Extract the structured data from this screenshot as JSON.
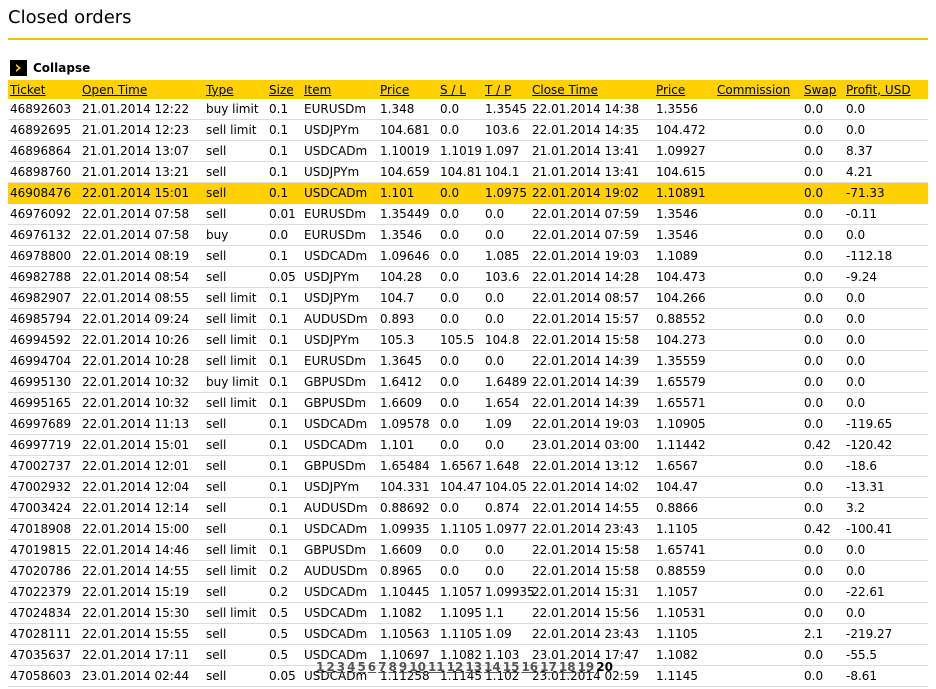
{
  "page": {
    "title": "Closed orders"
  },
  "toggle": {
    "label": "Collapse"
  },
  "table": {
    "headers": [
      "Ticket",
      "Open Time",
      "Type",
      "Size",
      "Item",
      "Price",
      "S / L",
      "T / P",
      "Close Time",
      "Price",
      "Commission",
      "Swap",
      "Profit, USD"
    ],
    "highlight_row": 4,
    "rows": [
      [
        "46892603",
        "21.01.2014 12:22",
        "buy limit",
        "0.1",
        "EURUSDm",
        "1.348",
        "0.0",
        "1.3545",
        "22.01.2014 14:38",
        "1.3556",
        "",
        "0.0",
        "0.0"
      ],
      [
        "46892695",
        "21.01.2014 12:23",
        "sell limit",
        "0.1",
        "USDJPYm",
        "104.681",
        "0.0",
        "103.6",
        "22.01.2014 14:35",
        "104.472",
        "",
        "0.0",
        "0.0"
      ],
      [
        "46896864",
        "21.01.2014 13:07",
        "sell",
        "0.1",
        "USDCADm",
        "1.10019",
        "1.1019",
        "1.097",
        "21.01.2014 13:41",
        "1.09927",
        "",
        "0.0",
        "8.37"
      ],
      [
        "46898760",
        "21.01.2014 13:21",
        "sell",
        "0.1",
        "USDJPYm",
        "104.659",
        "104.81",
        "104.1",
        "21.01.2014 13:41",
        "104.615",
        "",
        "0.0",
        "4.21"
      ],
      [
        "46908476",
        "22.01.2014 15:01",
        "sell",
        "0.1",
        "USDCADm",
        "1.101",
        "0.0",
        "1.0975",
        "22.01.2014 19:02",
        "1.10891",
        "",
        "0.0",
        "-71.33"
      ],
      [
        "46976092",
        "22.01.2014 07:58",
        "sell",
        "0.01",
        "EURUSDm",
        "1.35449",
        "0.0",
        "0.0",
        "22.01.2014 07:59",
        "1.3546",
        "",
        "0.0",
        "-0.11"
      ],
      [
        "46976132",
        "22.01.2014 07:58",
        "buy",
        "0.0",
        "EURUSDm",
        "1.3546",
        "0.0",
        "0.0",
        "22.01.2014 07:59",
        "1.3546",
        "",
        "0.0",
        "0.0"
      ],
      [
        "46978800",
        "22.01.2014 08:19",
        "sell",
        "0.1",
        "USDCADm",
        "1.09646",
        "0.0",
        "1.085",
        "22.01.2014 19:03",
        "1.1089",
        "",
        "0.0",
        "-112.18"
      ],
      [
        "46982788",
        "22.01.2014 08:54",
        "sell",
        "0.05",
        "USDJPYm",
        "104.28",
        "0.0",
        "103.6",
        "22.01.2014 14:28",
        "104.473",
        "",
        "0.0",
        "-9.24"
      ],
      [
        "46982907",
        "22.01.2014 08:55",
        "sell limit",
        "0.1",
        "USDJPYm",
        "104.7",
        "0.0",
        "0.0",
        "22.01.2014 08:57",
        "104.266",
        "",
        "0.0",
        "0.0"
      ],
      [
        "46985794",
        "22.01.2014 09:24",
        "sell limit",
        "0.1",
        "AUDUSDm",
        "0.893",
        "0.0",
        "0.0",
        "22.01.2014 15:57",
        "0.88552",
        "",
        "0.0",
        "0.0"
      ],
      [
        "46994592",
        "22.01.2014 10:26",
        "sell limit",
        "0.1",
        "USDJPYm",
        "105.3",
        "105.5",
        "104.8",
        "22.01.2014 15:58",
        "104.273",
        "",
        "0.0",
        "0.0"
      ],
      [
        "46994704",
        "22.01.2014 10:28",
        "sell limit",
        "0.1",
        "EURUSDm",
        "1.3645",
        "0.0",
        "0.0",
        "22.01.2014 14:39",
        "1.35559",
        "",
        "0.0",
        "0.0"
      ],
      [
        "46995130",
        "22.01.2014 10:32",
        "buy limit",
        "0.1",
        "GBPUSDm",
        "1.6412",
        "0.0",
        "1.6489",
        "22.01.2014 14:39",
        "1.65579",
        "",
        "0.0",
        "0.0"
      ],
      [
        "46995165",
        "22.01.2014 10:32",
        "sell limit",
        "0.1",
        "GBPUSDm",
        "1.6609",
        "0.0",
        "1.654",
        "22.01.2014 14:39",
        "1.65571",
        "",
        "0.0",
        "0.0"
      ],
      [
        "46997689",
        "22.01.2014 11:13",
        "sell",
        "0.1",
        "USDCADm",
        "1.09578",
        "0.0",
        "1.09",
        "22.01.2014 19:03",
        "1.10905",
        "",
        "0.0",
        "-119.65"
      ],
      [
        "46997719",
        "22.01.2014 15:01",
        "sell",
        "0.1",
        "USDCADm",
        "1.101",
        "0.0",
        "0.0",
        "23.01.2014 03:00",
        "1.11442",
        "",
        "0.42",
        "-120.42"
      ],
      [
        "47002737",
        "22.01.2014 12:01",
        "sell",
        "0.1",
        "GBPUSDm",
        "1.65484",
        "1.6567",
        "1.648",
        "22.01.2014 13:12",
        "1.6567",
        "",
        "0.0",
        "-18.6"
      ],
      [
        "47002932",
        "22.01.2014 12:04",
        "sell",
        "0.1",
        "USDJPYm",
        "104.331",
        "104.47",
        "104.05",
        "22.01.2014 14:02",
        "104.47",
        "",
        "0.0",
        "-13.31"
      ],
      [
        "47003424",
        "22.01.2014 12:14",
        "sell",
        "0.1",
        "AUDUSDm",
        "0.88692",
        "0.0",
        "0.874",
        "22.01.2014 14:55",
        "0.8866",
        "",
        "0.0",
        "3.2"
      ],
      [
        "47018908",
        "22.01.2014 15:00",
        "sell",
        "0.1",
        "USDCADm",
        "1.09935",
        "1.1105",
        "1.0977",
        "22.01.2014 23:43",
        "1.1105",
        "",
        "0.42",
        "-100.41"
      ],
      [
        "47019815",
        "22.01.2014 14:46",
        "sell limit",
        "0.1",
        "GBPUSDm",
        "1.6609",
        "0.0",
        "0.0",
        "22.01.2014 15:58",
        "1.65741",
        "",
        "0.0",
        "0.0"
      ],
      [
        "47020786",
        "22.01.2014 14:55",
        "sell limit",
        "0.2",
        "AUDUSDm",
        "0.8965",
        "0.0",
        "0.0",
        "22.01.2014 15:58",
        "0.88559",
        "",
        "0.0",
        "0.0"
      ],
      [
        "47022379",
        "22.01.2014 15:19",
        "sell",
        "0.2",
        "USDCADm",
        "1.10445",
        "1.1057",
        "1.09935",
        "22.01.2014 15:31",
        "1.1057",
        "",
        "0.0",
        "-22.61"
      ],
      [
        "47024834",
        "22.01.2014 15:30",
        "sell limit",
        "0.5",
        "USDCADm",
        "1.1082",
        "1.1095",
        "1.1",
        "22.01.2014 15:56",
        "1.10531",
        "",
        "0.0",
        "0.0"
      ],
      [
        "47028111",
        "22.01.2014 15:55",
        "sell",
        "0.5",
        "USDCADm",
        "1.10563",
        "1.1105",
        "1.09",
        "22.01.2014 23:43",
        "1.1105",
        "",
        "2.1",
        "-219.27"
      ],
      [
        "47035637",
        "22.01.2014 17:11",
        "sell",
        "0.5",
        "USDCADm",
        "1.10697",
        "1.1082",
        "1.103",
        "23.01.2014 17:47",
        "1.1082",
        "",
        "0.0",
        "-55.5"
      ],
      [
        "47058603",
        "23.01.2014 02:44",
        "sell",
        "0.05",
        "USDCADm",
        "1.11258",
        "1.1145",
        "1.102",
        "23.01.2014 02:59",
        "1.1145",
        "",
        "0.0",
        "-8.61"
      ]
    ]
  },
  "pagination": {
    "pages": [
      "1",
      "2",
      "3",
      "4",
      "5",
      "6",
      "7",
      "8",
      "9",
      "10",
      "11",
      "12",
      "13",
      "14",
      "15",
      "16",
      "17",
      "18",
      "19"
    ],
    "current": "20"
  }
}
